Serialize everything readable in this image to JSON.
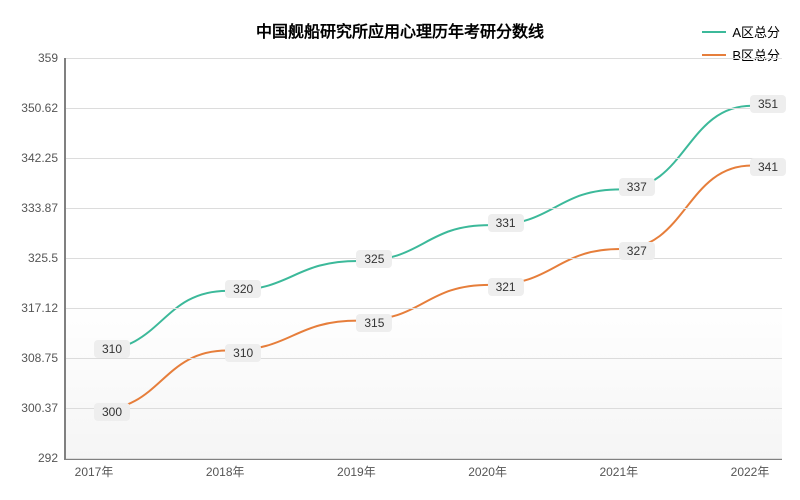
{
  "chart": {
    "type": "line",
    "title": "中国舰船研究所应用心理历年考研分数线",
    "title_fontsize": 16,
    "title_fontweight": "bold",
    "background_color": "#ffffff",
    "grid_color": "#dcdcdc",
    "axis_color": "#808080",
    "label_fontsize": 12,
    "line_width": 2,
    "x": {
      "categories": [
        "2017年",
        "2018年",
        "2019年",
        "2020年",
        "2021年",
        "2022年"
      ]
    },
    "y": {
      "min": 292,
      "max": 359,
      "ticks": [
        292,
        300.37,
        308.75,
        317.12,
        325.5,
        333.87,
        342.25,
        350.62,
        359
      ]
    },
    "series": [
      {
        "name": "A区总分",
        "color": "#3cb99a",
        "values": [
          310,
          320,
          325,
          331,
          337,
          351
        ]
      },
      {
        "name": "B区总分",
        "color": "#e67e3b",
        "values": [
          300,
          310,
          315,
          321,
          327,
          341
        ]
      }
    ],
    "legend": {
      "position": "top-right",
      "fontsize": 13
    }
  }
}
